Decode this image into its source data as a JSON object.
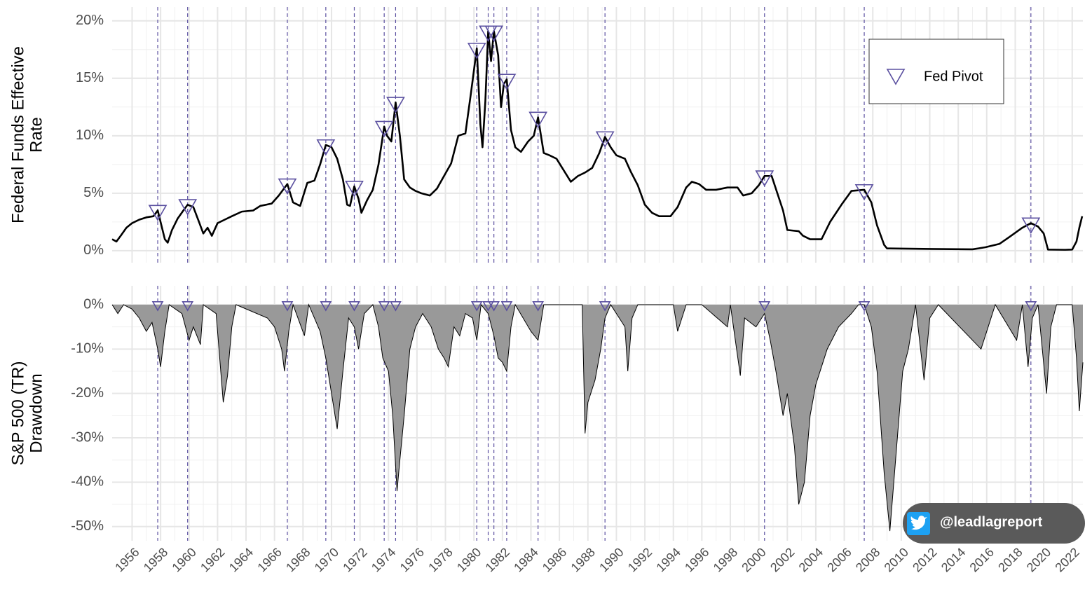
{
  "chart_data": [
    {
      "type": "line",
      "y_label": [
        "Federal Funds Effective",
        "Rate"
      ],
      "xlim": [
        1954.6,
        2022.75
      ],
      "xticks": [
        1956,
        1958,
        1960,
        1962,
        1964,
        1966,
        1968,
        1970,
        1972,
        1974,
        1976,
        1978,
        1980,
        1982,
        1984,
        1986,
        1988,
        1990,
        1992,
        1994,
        1996,
        1998,
        2000,
        2002,
        2004,
        2006,
        2008,
        2010,
        2012,
        2014,
        2016,
        2018,
        2020,
        2022
      ],
      "ylim": [
        -1.04,
        21.2
      ],
      "yticks": [
        {
          "value": 0,
          "label": "0%"
        },
        {
          "value": 5,
          "label": "5%"
        },
        {
          "value": 10,
          "label": "10%"
        },
        {
          "value": 15,
          "label": "15%"
        },
        {
          "value": 20,
          "label": "20%"
        }
      ],
      "grid": true,
      "legend": "top-right",
      "series": [
        {
          "name": "Federal Funds Effective Rate",
          "color": "#000000",
          "x": [
            1954.6,
            1954.9,
            1955.2,
            1955.6,
            1956.0,
            1956.5,
            1957.0,
            1957.5,
            1957.8,
            1958.0,
            1958.3,
            1958.5,
            1958.8,
            1959.2,
            1959.6,
            1959.9,
            1960.3,
            1960.7,
            1961.0,
            1961.3,
            1961.6,
            1962.0,
            1962.5,
            1963.0,
            1963.7,
            1964.5,
            1965.0,
            1965.8,
            1966.3,
            1966.9,
            1967.3,
            1967.8,
            1968.3,
            1968.8,
            1969.2,
            1969.6,
            1970.0,
            1970.4,
            1970.8,
            1971.1,
            1971.3,
            1971.6,
            1971.9,
            1972.1,
            1972.5,
            1972.9,
            1973.3,
            1973.7,
            1973.9,
            1974.2,
            1974.5,
            1974.8,
            1975.1,
            1975.5,
            1975.9,
            1976.3,
            1976.9,
            1977.4,
            1977.9,
            1978.4,
            1978.9,
            1979.4,
            1979.8,
            1980.2,
            1980.45,
            1980.6,
            1980.8,
            1981.0,
            1981.2,
            1981.4,
            1981.7,
            1981.9,
            1982.1,
            1982.3,
            1982.6,
            1982.9,
            1983.3,
            1983.8,
            1984.2,
            1984.5,
            1984.9,
            1985.3,
            1985.8,
            1986.3,
            1986.8,
            1987.3,
            1987.8,
            1988.3,
            1988.8,
            1989.2,
            1989.6,
            1990.0,
            1990.6,
            1991.0,
            1991.5,
            1992.0,
            1992.5,
            1993.0,
            1993.8,
            1994.3,
            1994.9,
            1995.3,
            1995.8,
            1996.3,
            1997.0,
            1997.8,
            1998.5,
            1998.9,
            1999.5,
            2000.0,
            2000.4,
            2000.9,
            2001.3,
            2001.7,
            2002.0,
            2002.8,
            2003.1,
            2003.6,
            2004.4,
            2005.0,
            2005.8,
            2006.5,
            2007.4,
            2007.9,
            2008.3,
            2008.8,
            2009.0,
            2012.0,
            2015.0,
            2015.9,
            2016.9,
            2017.6,
            2018.5,
            2019.1,
            2019.6,
            2020.0,
            2020.3,
            2021.5,
            2022.0,
            2022.3,
            2022.5,
            2022.7
          ],
          "values": [
            1.0,
            0.8,
            1.3,
            2.0,
            2.4,
            2.7,
            2.9,
            3.0,
            3.5,
            2.5,
            1.0,
            0.7,
            1.8,
            2.8,
            3.5,
            4.0,
            3.8,
            2.5,
            1.5,
            2.0,
            1.3,
            2.4,
            2.7,
            3.0,
            3.4,
            3.5,
            3.9,
            4.1,
            4.8,
            5.8,
            4.2,
            3.9,
            5.9,
            6.1,
            7.5,
            9.2,
            9.0,
            8.0,
            6.2,
            4.0,
            3.9,
            5.6,
            4.5,
            3.3,
            4.4,
            5.3,
            7.5,
            10.8,
            10.0,
            9.5,
            12.9,
            10.0,
            6.2,
            5.5,
            5.2,
            5.0,
            4.8,
            5.4,
            6.5,
            7.6,
            10.0,
            10.2,
            13.8,
            17.6,
            11.0,
            9.0,
            13.0,
            19.1,
            16.5,
            19.1,
            17.0,
            12.5,
            14.5,
            14.9,
            10.5,
            9.0,
            8.6,
            9.5,
            10.0,
            11.6,
            8.5,
            8.3,
            8.0,
            7.0,
            6.0,
            6.5,
            6.8,
            7.2,
            8.5,
            9.9,
            9.0,
            8.3,
            8.0,
            6.9,
            5.7,
            4.0,
            3.3,
            3.0,
            3.0,
            3.8,
            5.5,
            6.0,
            5.8,
            5.3,
            5.3,
            5.5,
            5.5,
            4.8,
            5.0,
            5.7,
            6.5,
            6.5,
            5.0,
            3.5,
            1.8,
            1.7,
            1.3,
            1.0,
            1.0,
            2.5,
            4.0,
            5.2,
            5.3,
            4.2,
            2.2,
            0.5,
            0.2,
            0.15,
            0.12,
            0.3,
            0.6,
            1.2,
            2.0,
            2.4,
            2.1,
            1.5,
            0.1,
            0.08,
            0.1,
            0.8,
            2.0,
            3.0
          ]
        },
        {
          "name": "Fed Pivot",
          "color": "#5b50a0",
          "x": [
            1957.8,
            1959.9,
            1966.9,
            1969.6,
            1971.6,
            1973.7,
            1974.5,
            1980.2,
            1981.0,
            1981.4,
            1982.3,
            1984.5,
            1989.2,
            2000.4,
            2007.4,
            2019.1
          ],
          "values": [
            3.5,
            4.0,
            5.8,
            9.2,
            5.6,
            10.8,
            12.9,
            17.6,
            19.1,
            19.1,
            14.9,
            11.6,
            9.9,
            6.5,
            5.3,
            2.4
          ]
        }
      ]
    },
    {
      "type": "area",
      "y_label": [
        "S&P 500 (TR)",
        "Drawdown"
      ],
      "xlim": [
        1954.6,
        2022.75
      ],
      "xticks": [
        1956,
        1958,
        1960,
        1962,
        1964,
        1966,
        1968,
        1970,
        1972,
        1974,
        1976,
        1978,
        1980,
        1982,
        1984,
        1986,
        1988,
        1990,
        1992,
        1994,
        1996,
        1998,
        2000,
        2002,
        2004,
        2006,
        2008,
        2010,
        2012,
        2014,
        2016,
        2018,
        2020,
        2022
      ],
      "ylim": [
        -53.2,
        4.26
      ],
      "yticks": [
        {
          "value": 0,
          "label": "0%"
        },
        {
          "value": -10,
          "label": "-10%"
        },
        {
          "value": -20,
          "label": "-20%"
        },
        {
          "value": -30,
          "label": "-30%"
        },
        {
          "value": -40,
          "label": "-40%"
        },
        {
          "value": -50,
          "label": "-50%"
        }
      ],
      "grid": true,
      "series": [
        {
          "name": "S&P 500 (TR) Drawdown",
          "color": "#999999",
          "x": [
            1954.6,
            1955.0,
            1955.4,
            1956.0,
            1956.5,
            1957.0,
            1957.4,
            1957.8,
            1958.0,
            1958.3,
            1958.6,
            1959.5,
            1960.0,
            1960.3,
            1960.8,
            1961.0,
            1961.9,
            1962.1,
            1962.4,
            1962.7,
            1963.0,
            1963.3,
            1965.5,
            1966.0,
            1966.5,
            1966.7,
            1967.0,
            1967.3,
            1968.1,
            1968.4,
            1969.2,
            1969.6,
            1970.0,
            1970.4,
            1970.8,
            1971.2,
            1971.6,
            1971.9,
            1972.3,
            1972.9,
            1973.3,
            1973.6,
            1974.0,
            1974.3,
            1974.6,
            1974.8,
            1975.1,
            1975.5,
            1975.9,
            1976.4,
            1977.0,
            1977.5,
            1977.9,
            1978.2,
            1978.6,
            1979.0,
            1979.4,
            1979.9,
            1980.2,
            1980.5,
            1981.0,
            1981.4,
            1981.7,
            1982.0,
            1982.3,
            1982.6,
            1982.9,
            1984.0,
            1984.5,
            1984.9,
            1987.0,
            1987.6,
            1987.8,
            1988.0,
            1988.5,
            1988.9,
            1989.2,
            1989.6,
            1990.6,
            1990.8,
            1991.1,
            1991.5,
            1994.0,
            1994.3,
            1994.9,
            1996.0,
            1997.8,
            1998.0,
            1998.7,
            1999.0,
            1999.8,
            2000.4,
            2000.8,
            2001.2,
            2001.7,
            2002.0,
            2002.5,
            2002.8,
            2003.2,
            2003.6,
            2004.0,
            2004.8,
            2005.6,
            2006.5,
            2007.0,
            2007.4,
            2007.9,
            2008.3,
            2008.8,
            2009.2,
            2009.6,
            2010.1,
            2010.5,
            2011.0,
            2011.6,
            2012.0,
            2012.6,
            2015.6,
            2016.1,
            2016.6,
            2018.1,
            2018.5,
            2018.9,
            2019.2,
            2019.6,
            2020.2,
            2020.5,
            2020.9,
            2022.0,
            2022.3,
            2022.5,
            2022.75
          ],
          "values": [
            0,
            -2,
            0,
            -1,
            -3,
            -6,
            -4,
            -10,
            -14,
            -6,
            0,
            -2,
            -8,
            -5,
            -9,
            0,
            -2,
            -10,
            -22,
            -16,
            -5,
            0,
            -3,
            -5,
            -10,
            -15,
            -6,
            0,
            -7,
            0,
            -6,
            -12,
            -20,
            -28,
            -15,
            -3,
            -5,
            -10,
            -2,
            0,
            -5,
            -12,
            -15,
            -25,
            -42,
            -35,
            -25,
            -10,
            -5,
            -2,
            -5,
            -10,
            -12,
            -14,
            -5,
            -7,
            -2,
            -3,
            -8,
            0,
            -2,
            -7,
            -12,
            -13,
            -15,
            -5,
            0,
            -6,
            -8,
            0,
            0,
            0,
            -29,
            -22,
            -17,
            -10,
            -3,
            0,
            -5,
            -15,
            -3,
            0,
            0,
            -6,
            0,
            0,
            -5,
            0,
            -16,
            -3,
            -5,
            -2,
            -8,
            -15,
            -25,
            -20,
            -32,
            -45,
            -40,
            -25,
            -18,
            -10,
            -5,
            -2,
            0,
            0,
            -5,
            -15,
            -38,
            -51,
            -35,
            -15,
            -10,
            0,
            -17,
            -3,
            0,
            -10,
            -5,
            0,
            -8,
            0,
            -14,
            -3,
            0,
            -20,
            -5,
            0,
            0,
            -12,
            -24,
            -13
          ]
        },
        {
          "name": "Fed Pivot",
          "color": "#5b50a0",
          "x": [
            1957.8,
            1959.9,
            1966.9,
            1969.6,
            1971.6,
            1973.7,
            1974.5,
            1980.2,
            1981.0,
            1981.4,
            1982.3,
            1984.5,
            1989.2,
            2000.4,
            2007.4,
            2019.1
          ],
          "values": [
            0,
            0,
            0,
            0,
            0,
            0,
            0,
            0,
            0,
            0,
            0,
            0,
            0,
            0,
            0,
            0
          ]
        }
      ]
    }
  ],
  "watermark": "@leadlagreport"
}
